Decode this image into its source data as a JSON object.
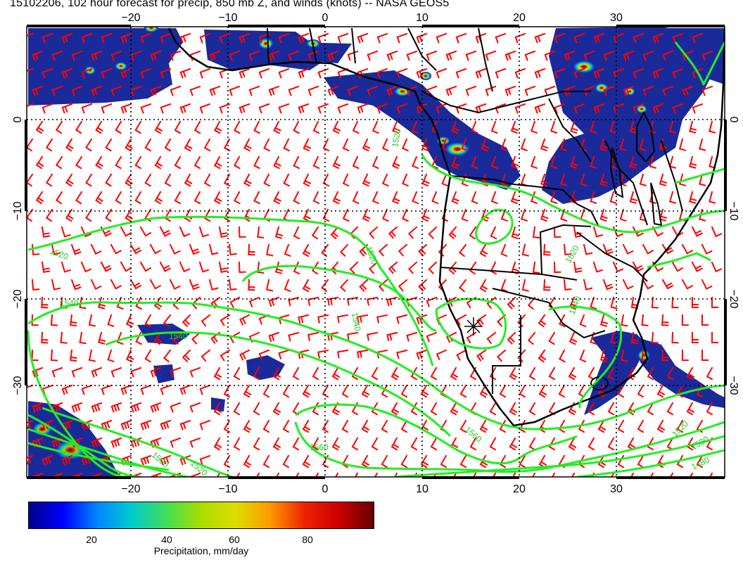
{
  "title": "15102206, 102 hour forecast for precip, 850 mb Z, and winds (knots) -- NASA GEOS5",
  "map": {
    "lon_labels": [
      "−20",
      "−10",
      "0",
      "10",
      "20",
      "30"
    ],
    "lat_labels": [
      "0",
      "−10",
      "−20",
      "−30"
    ],
    "contour_labels": [
      "1520",
      "1520",
      "1520",
      "1540",
      "1540",
      "1540",
      "1540",
      "1520",
      "1520",
      "1500",
      "1560",
      "1560",
      "1520",
      "1500",
      "1480"
    ],
    "colors": {
      "wind_barbs": "#ff0000",
      "contours": "#22ee22",
      "coastlines": "#000000",
      "gridlines": "#000000"
    },
    "wind_units": "knots",
    "contour_field": "850 mb Z",
    "precip_field": "precip"
  },
  "colorbar": {
    "labels": [
      "20",
      "40",
      "60",
      "80"
    ],
    "title": "Precipitation, mm/day",
    "gradient": [
      "#00008b",
      "#0000ff",
      "#0088ff",
      "#00cccc",
      "#44dd55",
      "#aadd00",
      "#dddd00",
      "#ff9900",
      "#ee2200",
      "#cc0000",
      "#660000"
    ]
  }
}
